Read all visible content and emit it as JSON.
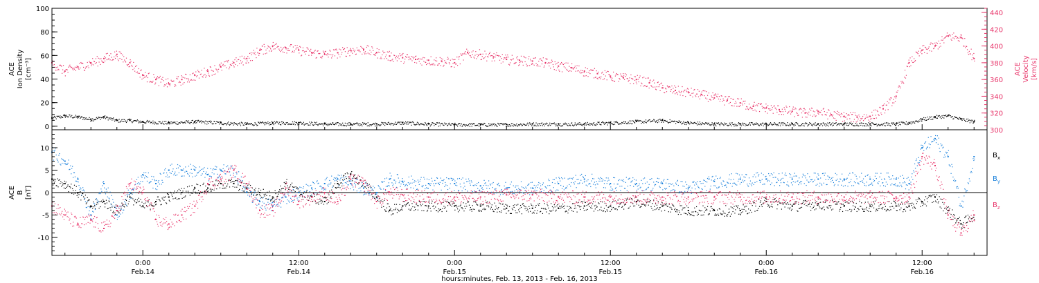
{
  "colors": {
    "density": "#000000",
    "velocity": "#e8356a",
    "bx": "#000000",
    "by": "#1c82dc",
    "bz": "#e8356a",
    "axes": "#000000"
  },
  "chart_data": [
    {
      "type": "scatter",
      "panel": "top",
      "xlabel": "hours:minutes, Feb. 13, 2013 - Feb. 16, 2013",
      "x_unit": "hours since 2013-02-13 00:00",
      "xlim": [
        17,
        89
      ],
      "x_ticks": [
        {
          "x": 24,
          "time": "0:00",
          "date": "Feb.14"
        },
        {
          "x": 36,
          "time": "12:00",
          "date": "Feb.14"
        },
        {
          "x": 48,
          "time": "0:00",
          "date": "Feb.15"
        },
        {
          "x": 60,
          "time": "12:00",
          "date": "Feb.15"
        },
        {
          "x": 72,
          "time": "0:00",
          "date": "Feb.16"
        },
        {
          "x": 84,
          "time": "12:00",
          "date": "Feb.16"
        }
      ],
      "left_axis": {
        "label_lines": [
          "ACE",
          "Ion Density",
          "[cm⁻³]"
        ],
        "ylim": [
          -3,
          100
        ],
        "ticks": [
          0,
          20,
          40,
          60,
          80,
          100
        ]
      },
      "right_axis": {
        "label_lines": [
          "ACE",
          "Velocity",
          "[km/s]"
        ],
        "ylim": [
          300,
          445
        ],
        "ticks": [
          300,
          320,
          340,
          360,
          380,
          400,
          420,
          440
        ]
      },
      "series": [
        {
          "key": "density",
          "axis": "left",
          "x": [
            17,
            18,
            19,
            20,
            21,
            22,
            23,
            24,
            26,
            28,
            30,
            32,
            34,
            36,
            38,
            40,
            42,
            44,
            46,
            48,
            50,
            52,
            54,
            56,
            58,
            60,
            62,
            64,
            66,
            68,
            70,
            72,
            74,
            76,
            78,
            80,
            82,
            83,
            84,
            85,
            86,
            87,
            88
          ],
          "y": [
            7,
            9,
            8,
            6,
            8,
            5,
            5,
            4,
            3,
            4,
            3,
            2,
            3,
            3,
            2,
            2,
            2,
            3,
            2,
            1.5,
            1.5,
            1.5,
            2,
            2,
            2,
            3,
            4,
            5,
            3,
            2,
            2,
            2,
            2,
            2,
            2,
            2,
            2,
            3,
            6,
            8,
            9,
            6,
            4
          ]
        },
        {
          "key": "velocity",
          "axis": "right",
          "x": [
            17,
            18,
            19,
            20,
            21,
            22,
            23,
            24,
            25,
            26,
            27,
            28,
            29,
            30,
            31,
            32,
            33,
            34,
            35,
            36,
            37,
            38,
            39,
            40,
            41,
            42,
            43,
            44,
            45,
            46,
            47,
            48,
            49,
            50,
            51,
            52,
            53,
            54,
            55,
            56,
            57,
            58,
            59,
            60,
            61,
            62,
            63,
            64,
            65,
            66,
            67,
            68,
            69,
            70,
            71,
            72,
            73,
            74,
            75,
            76,
            77,
            78,
            79,
            80,
            81,
            82,
            83,
            84,
            85,
            86,
            87,
            88
          ],
          "y": [
            380,
            370,
            375,
            380,
            385,
            390,
            380,
            365,
            360,
            355,
            360,
            365,
            370,
            375,
            380,
            385,
            395,
            400,
            398,
            395,
            392,
            390,
            392,
            395,
            396,
            392,
            388,
            386,
            384,
            383,
            382,
            380,
            392,
            390,
            387,
            384,
            383,
            382,
            380,
            376,
            374,
            370,
            367,
            364,
            362,
            360,
            356,
            350,
            347,
            345,
            342,
            338,
            335,
            332,
            328,
            326,
            324,
            322,
            320,
            322,
            318,
            316,
            315,
            316,
            325,
            340,
            380,
            395,
            400,
            412,
            410,
            385
          ]
        }
      ]
    },
    {
      "type": "scatter",
      "panel": "bottom",
      "xlim": [
        17,
        89
      ],
      "left_axis": {
        "label_lines": [
          "ACE",
          "B",
          "[nT]"
        ],
        "ylim": [
          -14,
          14
        ],
        "ticks": [
          -10,
          -5,
          0,
          5,
          10
        ]
      },
      "zero_line": true,
      "series": [
        {
          "key": "bx",
          "name": "B",
          "subscript": "x",
          "x": [
            17,
            18,
            19,
            20,
            21,
            22,
            23,
            24,
            25,
            26,
            27,
            28,
            29,
            30,
            31,
            32,
            33,
            34,
            35,
            36,
            37,
            38,
            39,
            40,
            41,
            42,
            43,
            44,
            46,
            48,
            50,
            52,
            54,
            56,
            58,
            60,
            62,
            64,
            66,
            68,
            70,
            72,
            74,
            76,
            78,
            80,
            82,
            83,
            84,
            85,
            86,
            87,
            88
          ],
          "y": [
            3,
            2,
            0,
            -3,
            -2,
            -4,
            -1,
            -3,
            -2,
            -1,
            0,
            1,
            1,
            2,
            2,
            1,
            0,
            -1,
            2,
            0,
            -1,
            -2,
            2,
            4,
            2,
            -1,
            -4,
            -3,
            -3,
            -3,
            -3,
            -3.5,
            -3.5,
            -3.5,
            -3,
            -3,
            -2,
            -3,
            -4,
            -4,
            -4,
            -2,
            -3,
            -2.5,
            -3,
            -3,
            -3,
            -3,
            -2,
            -1,
            -4,
            -7,
            -5
          ]
        },
        {
          "key": "by",
          "name": "B",
          "subscript": "y",
          "x": [
            17,
            18,
            19,
            20,
            21,
            22,
            23,
            24,
            25,
            26,
            27,
            28,
            29,
            30,
            31,
            32,
            33,
            34,
            35,
            36,
            37,
            38,
            39,
            40,
            41,
            42,
            43,
            44,
            46,
            48,
            50,
            52,
            54,
            56,
            58,
            60,
            62,
            64,
            66,
            68,
            70,
            72,
            74,
            76,
            78,
            80,
            82,
            83,
            84,
            85,
            86,
            87,
            88
          ],
          "y": [
            9,
            7,
            3,
            -5,
            2,
            -5,
            0,
            4,
            2,
            5,
            5,
            5,
            4,
            5,
            5,
            0,
            -2,
            -3,
            -1,
            0,
            1,
            2,
            3,
            2,
            1,
            0,
            3,
            2.5,
            2,
            2,
            1.5,
            1,
            1,
            2,
            3,
            2,
            2,
            2,
            1,
            2.5,
            3,
            3,
            3,
            3,
            3,
            3,
            3,
            2,
            10,
            12,
            8,
            -3,
            8
          ]
        },
        {
          "key": "bz",
          "name": "B",
          "subscript": "z",
          "x": [
            17,
            18,
            19,
            20,
            21,
            22,
            23,
            24,
            25,
            26,
            27,
            28,
            29,
            30,
            31,
            32,
            33,
            34,
            35,
            36,
            37,
            38,
            39,
            40,
            41,
            42,
            43,
            44,
            46,
            48,
            50,
            52,
            54,
            56,
            58,
            60,
            62,
            64,
            66,
            68,
            70,
            72,
            74,
            76,
            78,
            80,
            82,
            83,
            84,
            85,
            86,
            87,
            88
          ],
          "y": [
            -3,
            -5,
            -7,
            -6,
            -8,
            -4,
            2,
            0,
            -6,
            -7,
            -5,
            -3,
            2,
            3,
            5,
            2,
            -4,
            -4,
            1,
            -2,
            -1,
            0,
            -2,
            3,
            2,
            -2,
            0,
            -0.5,
            -1,
            -1,
            -1,
            -0.5,
            -0.5,
            -1,
            -1,
            -1,
            -1,
            -1,
            -1,
            -1,
            -1,
            -1,
            -1,
            -1,
            -1,
            -1,
            -1,
            -1,
            8,
            6,
            -5,
            -9,
            -5
          ]
        }
      ]
    }
  ]
}
